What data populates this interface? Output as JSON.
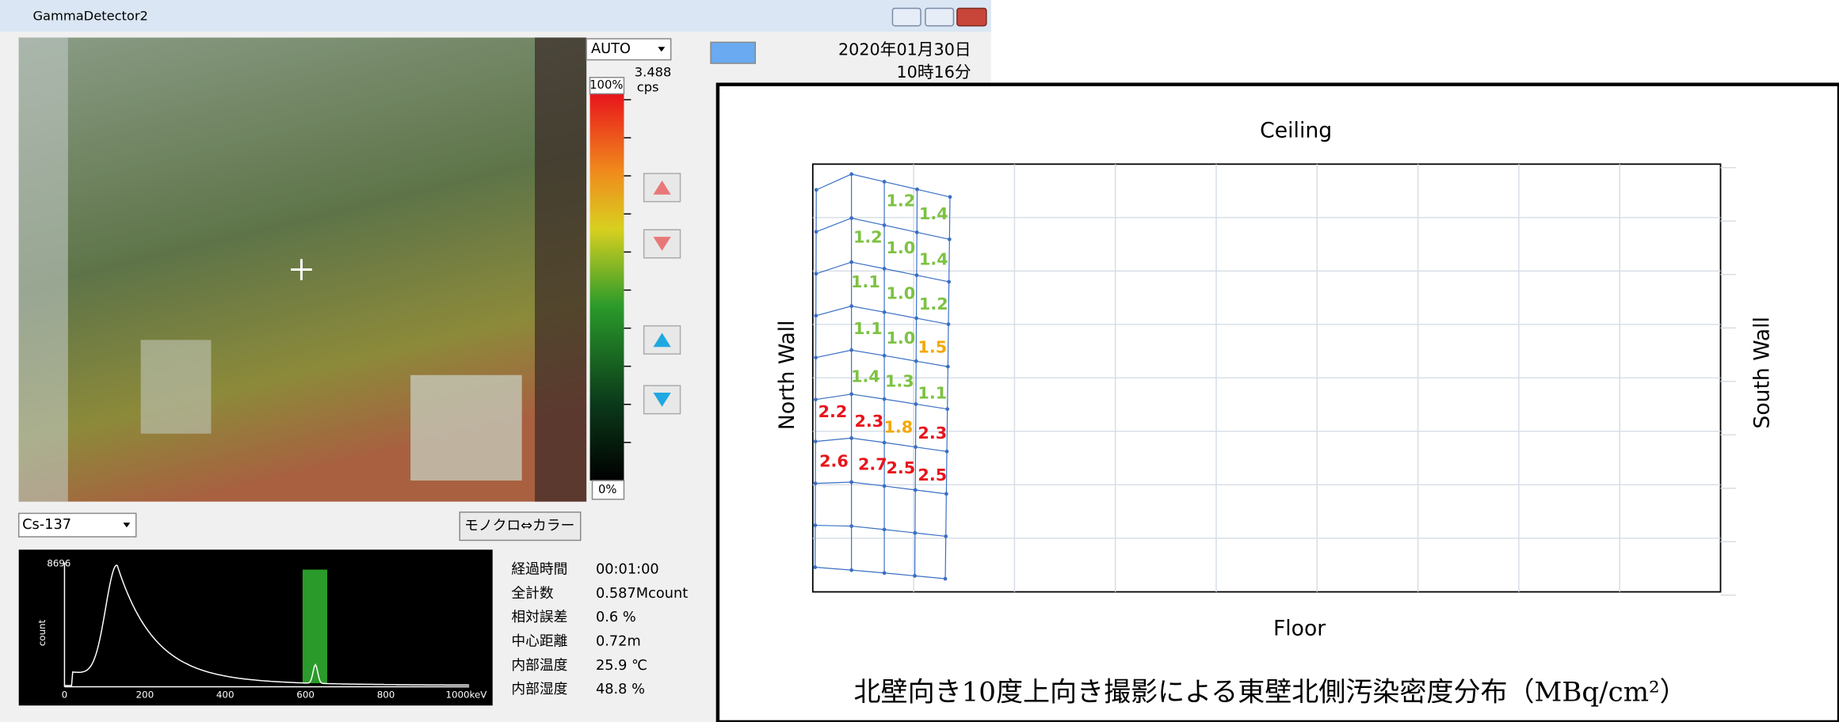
{
  "window": {
    "title": "GammaDetector2"
  },
  "controls": {
    "mode": "AUTO",
    "scale_value": "3.488",
    "scale_unit": "cps",
    "scale_top": "100%",
    "scale_bottom": "0%",
    "date": "2020年01月30日",
    "time": "10時16分",
    "nuclide": "Cs-137",
    "color_button": "モノクロ⇔カラー"
  },
  "spectrum": {
    "y_max": "8696",
    "y_label": "count",
    "x_labels": [
      "0",
      "200",
      "400",
      "600",
      "800",
      "1000keV"
    ]
  },
  "stats": [
    {
      "label": "経過時間",
      "value": "00:01:00"
    },
    {
      "label": "全計数",
      "value": "0.587Mcount"
    },
    {
      "label": "相対誤差",
      "value": "0.6 %"
    },
    {
      "label": "中心距離",
      "value": "0.72m"
    },
    {
      "label": "内部温度",
      "value": "25.9 ℃"
    },
    {
      "label": "内部湿度",
      "value": "48.8 %"
    }
  ],
  "overlay": {
    "top": "Ceiling",
    "bottom": "Floor",
    "left": "North Wall",
    "right": "South Wall",
    "caption": "北壁向き10度上向き撮影による東壁北側汚染密度分布（MBq/cm²）",
    "labels": [
      {
        "text": "1.2",
        "color": "#7dc242"
      },
      {
        "text": "1.4",
        "color": "#7dc242"
      },
      {
        "text": "1.2",
        "color": "#7dc242"
      },
      {
        "text": "1.0",
        "color": "#7dc242"
      },
      {
        "text": "1.4",
        "color": "#7dc242"
      },
      {
        "text": "1.1",
        "color": "#7dc242"
      },
      {
        "text": "1.0",
        "color": "#7dc242"
      },
      {
        "text": "1.2",
        "color": "#7dc242"
      },
      {
        "text": "1.1",
        "color": "#7dc242"
      },
      {
        "text": "1.0",
        "color": "#7dc242"
      },
      {
        "text": "1.5",
        "color": "#f5a800"
      },
      {
        "text": "1.4",
        "color": "#7dc242"
      },
      {
        "text": "1.3",
        "color": "#7dc242"
      },
      {
        "text": "1.1",
        "color": "#7dc242"
      },
      {
        "text": "2.2",
        "color": "#e8141c"
      },
      {
        "text": "2.3",
        "color": "#e8141c"
      },
      {
        "text": "1.8",
        "color": "#f5a800"
      },
      {
        "text": "2.3",
        "color": "#e8141c"
      },
      {
        "text": "2.6",
        "color": "#e8141c"
      },
      {
        "text": "2.7",
        "color": "#e8141c"
      },
      {
        "text": "2.5",
        "color": "#e8141c"
      },
      {
        "text": "2.5",
        "color": "#e8141c"
      }
    ]
  }
}
